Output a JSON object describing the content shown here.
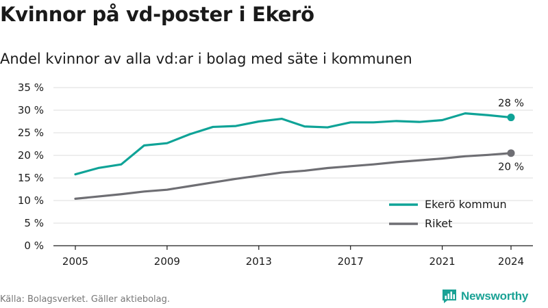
{
  "title": "Kvinnor på vd-poster i Ekerö",
  "subtitle": "Andel kvinnor av alla vd:ar i bolag med säte i kommunen",
  "footer": {
    "source": "Källa: Bolagsverket. Gäller aktiebolag.",
    "brand": "Newsworthy",
    "brand_icon": "newsworthy-logo-icon",
    "brand_color": "#1aa295"
  },
  "chart_data": {
    "type": "line",
    "x": [
      2005,
      2006,
      2007,
      2008,
      2009,
      2010,
      2011,
      2012,
      2013,
      2014,
      2015,
      2016,
      2017,
      2018,
      2019,
      2020,
      2021,
      2022,
      2023,
      2024
    ],
    "xticks": [
      2005,
      2009,
      2013,
      2017,
      2021,
      2024
    ],
    "xtick_labels": [
      "2005",
      "2009",
      "2013",
      "2017",
      "2021",
      "2024"
    ],
    "ylim": [
      0,
      35
    ],
    "yticks": [
      0,
      5,
      10,
      15,
      20,
      25,
      30,
      35
    ],
    "ytick_labels": [
      "0 %",
      "5 %",
      "10 %",
      "15 %",
      "20 %",
      "25 %",
      "30 %",
      "35 %"
    ],
    "grid": true,
    "legend_position": "bottom-right",
    "series": [
      {
        "name": "Ekerö kommun",
        "color": "#0fa397",
        "values": [
          15.8,
          17.2,
          18.0,
          22.2,
          22.7,
          24.7,
          26.3,
          26.5,
          27.5,
          28.1,
          26.4,
          26.2,
          27.3,
          27.3,
          27.6,
          27.4,
          27.8,
          29.3,
          28.9,
          28.4
        ],
        "end_label": "28 %"
      },
      {
        "name": "Riket",
        "color": "#6e6e73",
        "values": [
          10.4,
          10.9,
          11.4,
          12.0,
          12.4,
          13.2,
          14.0,
          14.8,
          15.5,
          16.2,
          16.6,
          17.2,
          17.6,
          18.0,
          18.5,
          18.9,
          19.3,
          19.8,
          20.1,
          20.5
        ],
        "end_label": "20 %"
      }
    ]
  }
}
